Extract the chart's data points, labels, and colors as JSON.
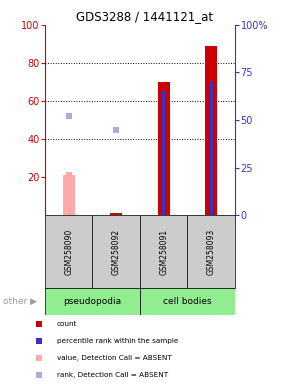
{
  "title": "GDS3288 / 1441121_at",
  "samples": [
    "GSM258090",
    "GSM258092",
    "GSM258091",
    "GSM258093"
  ],
  "group_labels": [
    "pseudopodia",
    "cell bodies"
  ],
  "bar_count_values": [
    21,
    1,
    70,
    89
  ],
  "bar_count_absent": [
    true,
    false,
    false,
    false
  ],
  "bar_rank_values": [
    null,
    null,
    65,
    70
  ],
  "scatter_rank_absent": [
    52,
    45,
    null,
    null
  ],
  "scatter_value_absent": [
    21,
    null,
    null,
    null
  ],
  "ylim_left": [
    0,
    100
  ],
  "ylim_right": [
    0,
    100
  ],
  "yticks_left": [
    20,
    40,
    60,
    80,
    100
  ],
  "yticks_right": [
    0,
    25,
    50,
    75,
    100
  ],
  "ytick_labels_right": [
    "0",
    "25",
    "50",
    "75",
    "100%"
  ],
  "grid_lines": [
    40,
    60,
    80
  ],
  "color_count": "#CC0000",
  "color_count_absent": "#FFAAAA",
  "color_rank": "#3333CC",
  "color_rank_absent": "#AAAADD",
  "left_axis_color": "#CC0000",
  "right_axis_color": "#3333CC",
  "sample_box_color": "#CCCCCC",
  "group_color": "#90EE90",
  "legend_items": [
    {
      "color": "#CC0000",
      "label": "count"
    },
    {
      "color": "#3333CC",
      "label": "percentile rank within the sample"
    },
    {
      "color": "#FFAAAA",
      "label": "value, Detection Call = ABSENT"
    },
    {
      "color": "#AAAADD",
      "label": "rank, Detection Call = ABSENT"
    }
  ]
}
